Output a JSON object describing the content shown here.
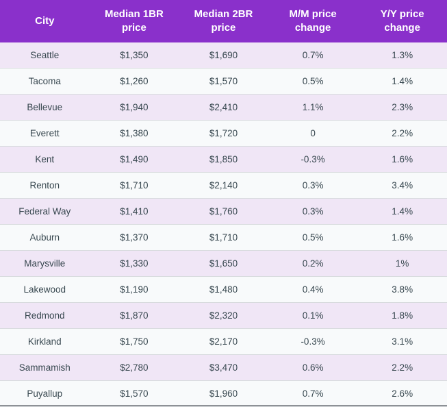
{
  "colors": {
    "header_bg": "#8a30cb",
    "header_text": "#ffffff",
    "row_odd_bg": "#f0e6f6",
    "row_even_bg": "#f8fafb",
    "cell_text": "#37474f",
    "row_divider": "#d8dbde",
    "bottom_edge": "#8d9196"
  },
  "chart_data": {
    "type": "table",
    "columns": [
      "City",
      "Median 1BR price",
      "Median 2BR price",
      "M/M price change",
      "Y/Y price change"
    ],
    "rows": [
      [
        "Seattle",
        "$1,350",
        "$1,690",
        "0.7%",
        "1.3%"
      ],
      [
        "Tacoma",
        "$1,260",
        "$1,570",
        "0.5%",
        "1.4%"
      ],
      [
        "Bellevue",
        "$1,940",
        "$2,410",
        "1.1%",
        "2.3%"
      ],
      [
        "Everett",
        "$1,380",
        "$1,720",
        "0",
        "2.2%"
      ],
      [
        "Kent",
        "$1,490",
        "$1,850",
        "-0.3%",
        "1.6%"
      ],
      [
        "Renton",
        "$1,710",
        "$2,140",
        "0.3%",
        "3.4%"
      ],
      [
        "Federal Way",
        "$1,410",
        "$1,760",
        "0.3%",
        "1.4%"
      ],
      [
        "Auburn",
        "$1,370",
        "$1,710",
        "0.5%",
        "1.6%"
      ],
      [
        "Marysville",
        "$1,330",
        "$1,650",
        "0.2%",
        "1%"
      ],
      [
        "Lakewood",
        "$1,190",
        "$1,480",
        "0.4%",
        "3.8%"
      ],
      [
        "Redmond",
        "$1,870",
        "$2,320",
        "0.1%",
        "1.8%"
      ],
      [
        "Kirkland",
        "$1,750",
        "$2,170",
        "-0.3%",
        "3.1%"
      ],
      [
        "Sammamish",
        "$2,780",
        "$3,470",
        "0.6%",
        "2.2%"
      ],
      [
        "Puyallup",
        "$1,570",
        "$1,960",
        "0.7%",
        "2.6%"
      ]
    ]
  }
}
